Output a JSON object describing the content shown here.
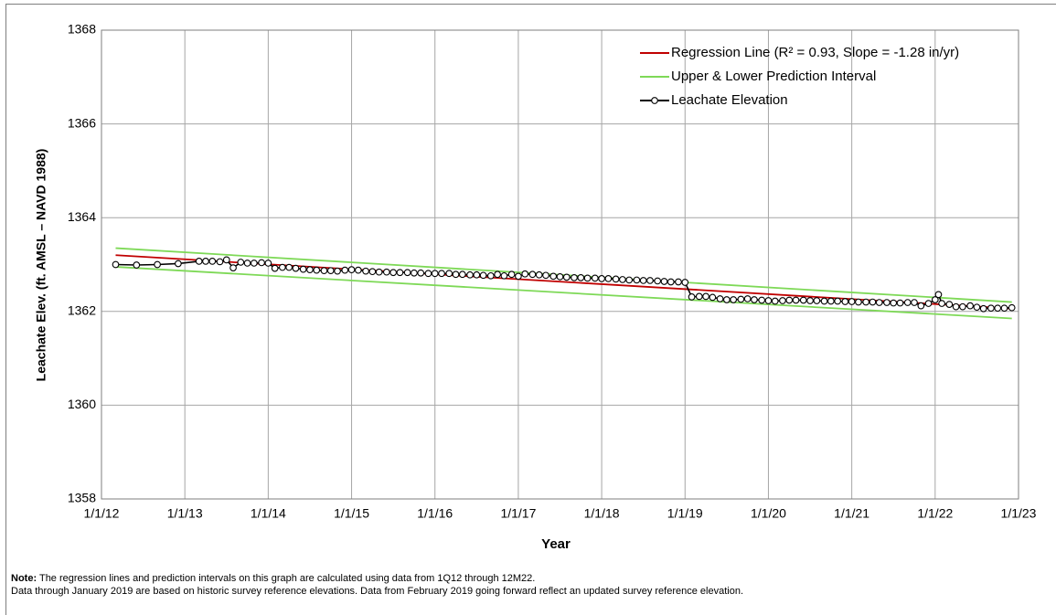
{
  "chart_data": {
    "type": "line",
    "y_label": "Leachate Elev. (ft. AMSL – NAVD 1988)",
    "x_label": "Year",
    "xlim": [
      2012,
      2023
    ],
    "xticks": [
      {
        "value": 2012,
        "label": "1/1/12"
      },
      {
        "value": 2013,
        "label": "1/1/13"
      },
      {
        "value": 2014,
        "label": "1/1/14"
      },
      {
        "value": 2015,
        "label": "1/1/15"
      },
      {
        "value": 2016,
        "label": "1/1/16"
      },
      {
        "value": 2017,
        "label": "1/1/17"
      },
      {
        "value": 2018,
        "label": "1/1/18"
      },
      {
        "value": 2019,
        "label": "1/1/19"
      },
      {
        "value": 2020,
        "label": "1/1/20"
      },
      {
        "value": 2021,
        "label": "1/1/21"
      },
      {
        "value": 2022,
        "label": "1/1/22"
      },
      {
        "value": 2023,
        "label": "1/1/23"
      }
    ],
    "ylim": [
      1358,
      1368
    ],
    "yticks": [
      1358,
      1360,
      1362,
      1364,
      1366,
      1368
    ],
    "grid": true,
    "legend": "upper right",
    "series": [
      {
        "name": "Regression Line (R² = 0.93, Slope = -1.28 in/yr)",
        "color": "#c00000",
        "x": [
          2012.17,
          2022.92
        ],
        "values": [
          1363.2,
          1362.06
        ]
      },
      {
        "name": "Upper & Lower Prediction Interval",
        "color": "#7ed957",
        "x": [
          2012.17,
          2022.92
        ],
        "values": [
          1363.35,
          1362.2
        ],
        "lower_values": [
          1362.95,
          1361.85
        ]
      },
      {
        "name": "Leachate Elevation",
        "color": "#000000",
        "marker": "circle",
        "x": [
          2012.17,
          2012.42,
          2012.67,
          2012.92,
          2013.17,
          2013.25,
          2013.33,
          2013.42,
          2013.5,
          2013.58,
          2013.67,
          2013.75,
          2013.83,
          2013.92,
          2014.0,
          2014.08,
          2014.17,
          2014.25,
          2014.33,
          2014.42,
          2014.5,
          2014.58,
          2014.67,
          2014.75,
          2014.83,
          2014.92,
          2015.0,
          2015.08,
          2015.17,
          2015.25,
          2015.33,
          2015.42,
          2015.5,
          2015.58,
          2015.67,
          2015.75,
          2015.83,
          2015.92,
          2016.0,
          2016.08,
          2016.17,
          2016.25,
          2016.33,
          2016.42,
          2016.5,
          2016.58,
          2016.67,
          2016.75,
          2016.83,
          2016.92,
          2017.0,
          2017.08,
          2017.17,
          2017.25,
          2017.33,
          2017.42,
          2017.5,
          2017.58,
          2017.67,
          2017.75,
          2017.83,
          2017.92,
          2018.0,
          2018.08,
          2018.17,
          2018.25,
          2018.33,
          2018.42,
          2018.5,
          2018.58,
          2018.67,
          2018.75,
          2018.83,
          2018.92,
          2019.0,
          2019.08,
          2019.17,
          2019.25,
          2019.33,
          2019.42,
          2019.5,
          2019.58,
          2019.67,
          2019.75,
          2019.83,
          2019.92,
          2020.0,
          2020.08,
          2020.17,
          2020.25,
          2020.33,
          2020.42,
          2020.5,
          2020.58,
          2020.67,
          2020.75,
          2020.83,
          2020.92,
          2021.0,
          2021.08,
          2021.17,
          2021.25,
          2021.33,
          2021.42,
          2021.5,
          2021.58,
          2021.67,
          2021.75,
          2021.83,
          2021.92,
          2022.0,
          2022.04,
          2022.08,
          2022.17,
          2022.25,
          2022.33,
          2022.42,
          2022.5,
          2022.58,
          2022.67,
          2022.75,
          2022.83,
          2022.92
        ],
        "values": [
          1363.0,
          1362.99,
          1363.0,
          1363.02,
          1363.07,
          1363.07,
          1363.07,
          1363.06,
          1363.1,
          1362.93,
          1363.05,
          1363.03,
          1363.03,
          1363.04,
          1363.03,
          1362.92,
          1362.94,
          1362.94,
          1362.92,
          1362.9,
          1362.89,
          1362.88,
          1362.87,
          1362.87,
          1362.86,
          1362.88,
          1362.89,
          1362.88,
          1362.86,
          1362.85,
          1362.84,
          1362.84,
          1362.83,
          1362.83,
          1362.83,
          1362.82,
          1362.82,
          1362.81,
          1362.81,
          1362.81,
          1362.81,
          1362.79,
          1362.79,
          1362.78,
          1362.78,
          1362.77,
          1362.76,
          1362.79,
          1362.76,
          1362.79,
          1362.75,
          1362.8,
          1362.79,
          1362.78,
          1362.77,
          1362.75,
          1362.74,
          1362.73,
          1362.72,
          1362.72,
          1362.71,
          1362.71,
          1362.7,
          1362.7,
          1362.69,
          1362.68,
          1362.67,
          1362.67,
          1362.66,
          1362.66,
          1362.65,
          1362.64,
          1362.63,
          1362.63,
          1362.62,
          1362.31,
          1362.32,
          1362.32,
          1362.3,
          1362.27,
          1362.25,
          1362.25,
          1362.26,
          1362.27,
          1362.25,
          1362.24,
          1362.23,
          1362.22,
          1362.23,
          1362.24,
          1362.24,
          1362.24,
          1362.23,
          1362.23,
          1362.22,
          1362.22,
          1362.22,
          1362.21,
          1362.21,
          1362.2,
          1362.2,
          1362.2,
          1362.19,
          1362.19,
          1362.18,
          1362.18,
          1362.19,
          1362.19,
          1362.12,
          1362.17,
          1362.25,
          1362.36,
          1362.17,
          1362.15,
          1362.1,
          1362.1,
          1362.12,
          1362.09,
          1362.06,
          1362.07,
          1362.07,
          1362.07,
          1362.08
        ]
      }
    ],
    "note_label": "Note:",
    "notes": [
      "The regression lines and prediction intervals on this graph are calculated using data from 1Q12 through 12M22.",
      "Data through January 2019 are based on historic survey reference elevations. Data from February 2019 going forward reflect an updated survey reference elevation."
    ]
  }
}
